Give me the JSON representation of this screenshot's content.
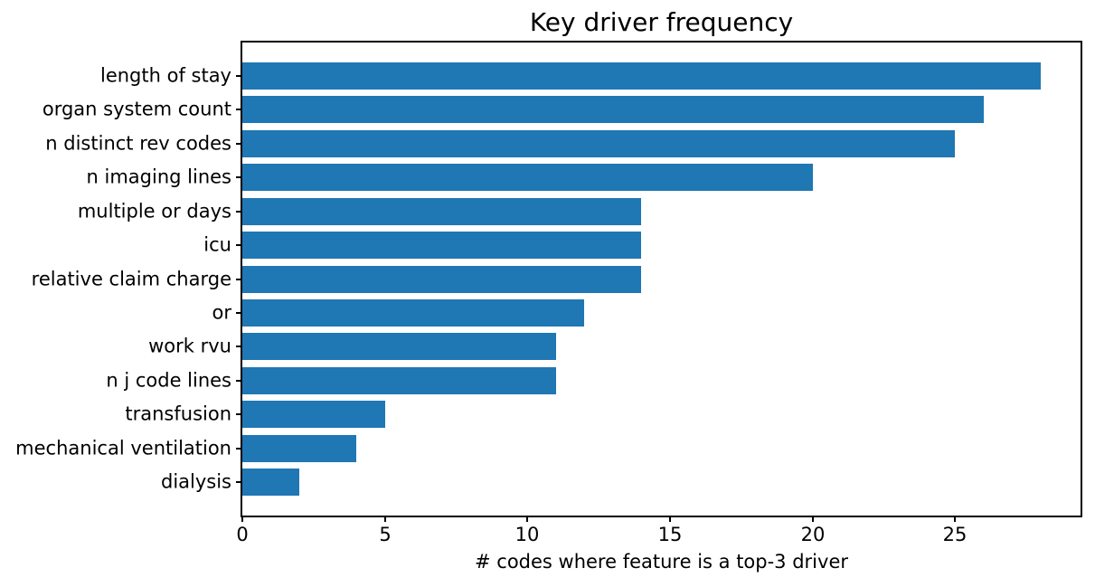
{
  "chart_data": {
    "type": "bar",
    "orientation": "horizontal",
    "title": "Key driver frequency",
    "xlabel": "# codes where feature is a top-3 driver",
    "ylabel": "",
    "categories": [
      "length of stay",
      "organ system count",
      "n distinct rev codes",
      "n imaging lines",
      "multiple or days",
      "icu",
      "relative claim charge",
      "or",
      "work rvu",
      "n j code lines",
      "transfusion",
      "mechanical ventilation",
      "dialysis"
    ],
    "values": [
      28,
      26,
      25,
      20,
      14,
      14,
      14,
      12,
      11,
      11,
      5,
      4,
      2
    ],
    "xticks": [
      0,
      5,
      10,
      15,
      20,
      25
    ],
    "xlim": [
      0,
      29.4
    ],
    "bar_color": "#1f77b4",
    "axis_color": "#000000",
    "background_color": "#ffffff",
    "grid": false,
    "legend": null
  }
}
